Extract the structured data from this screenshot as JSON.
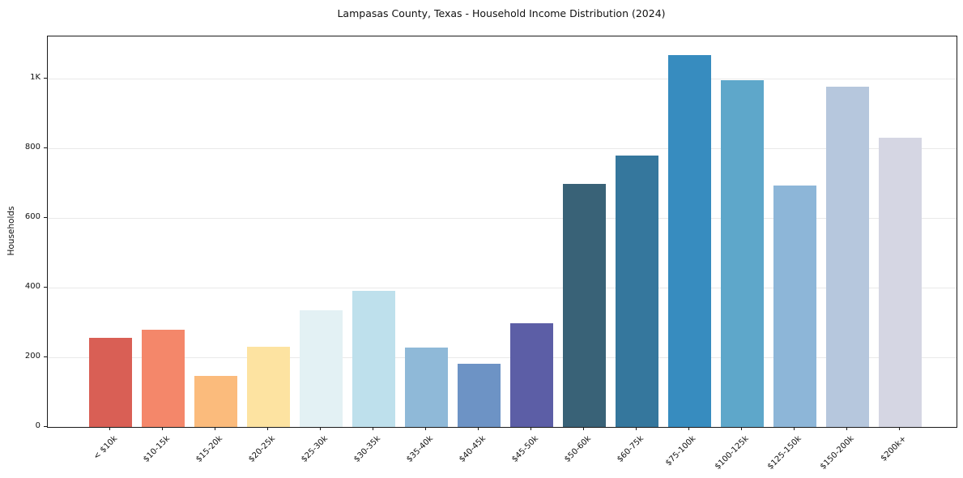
{
  "title": "Lampasas County, Texas - Household Income Distribution (2024)",
  "chart_data": {
    "type": "bar",
    "title": "Lampasas County, Texas - Household Income Distribution (2024)",
    "xlabel": "",
    "ylabel": "Households",
    "categories": [
      "< $10k",
      "$10-15k",
      "$15-20k",
      "$20-25k",
      "$25-30k",
      "$30-35k",
      "$35-40k",
      "$40-45k",
      "$45-50k",
      "$50-60k",
      "$60-75k",
      "$75-100k",
      "$100-125k",
      "$125-150k",
      "$150-200k",
      "$200k+"
    ],
    "values": [
      255,
      278,
      147,
      231,
      336,
      391,
      227,
      182,
      297,
      697,
      779,
      1068,
      995,
      692,
      978,
      830
    ],
    "bar_colors": [
      "#d95f55",
      "#f4876a",
      "#fbbb7c",
      "#fde3a1",
      "#e3f1f4",
      "#bee0ec",
      "#8fb9d8",
      "#6d93c5",
      "#5c5ea6",
      "#396277",
      "#35779d",
      "#378cbf",
      "#5ea7ca",
      "#8db6d8",
      "#b6c7dd",
      "#d5d6e3"
    ],
    "ylim": [
      0,
      1121
    ],
    "yticks": [
      {
        "value": 0,
        "label": "0"
      },
      {
        "value": 200,
        "label": "200"
      },
      {
        "value": 400,
        "label": "400"
      },
      {
        "value": 600,
        "label": "600"
      },
      {
        "value": 800,
        "label": "800"
      },
      {
        "value": 1000,
        "label": "1K"
      }
    ],
    "grid": "horizontal",
    "legend_position": "none",
    "plot_background": "#ffffff",
    "gridline_color": "#e9e9e9"
  }
}
